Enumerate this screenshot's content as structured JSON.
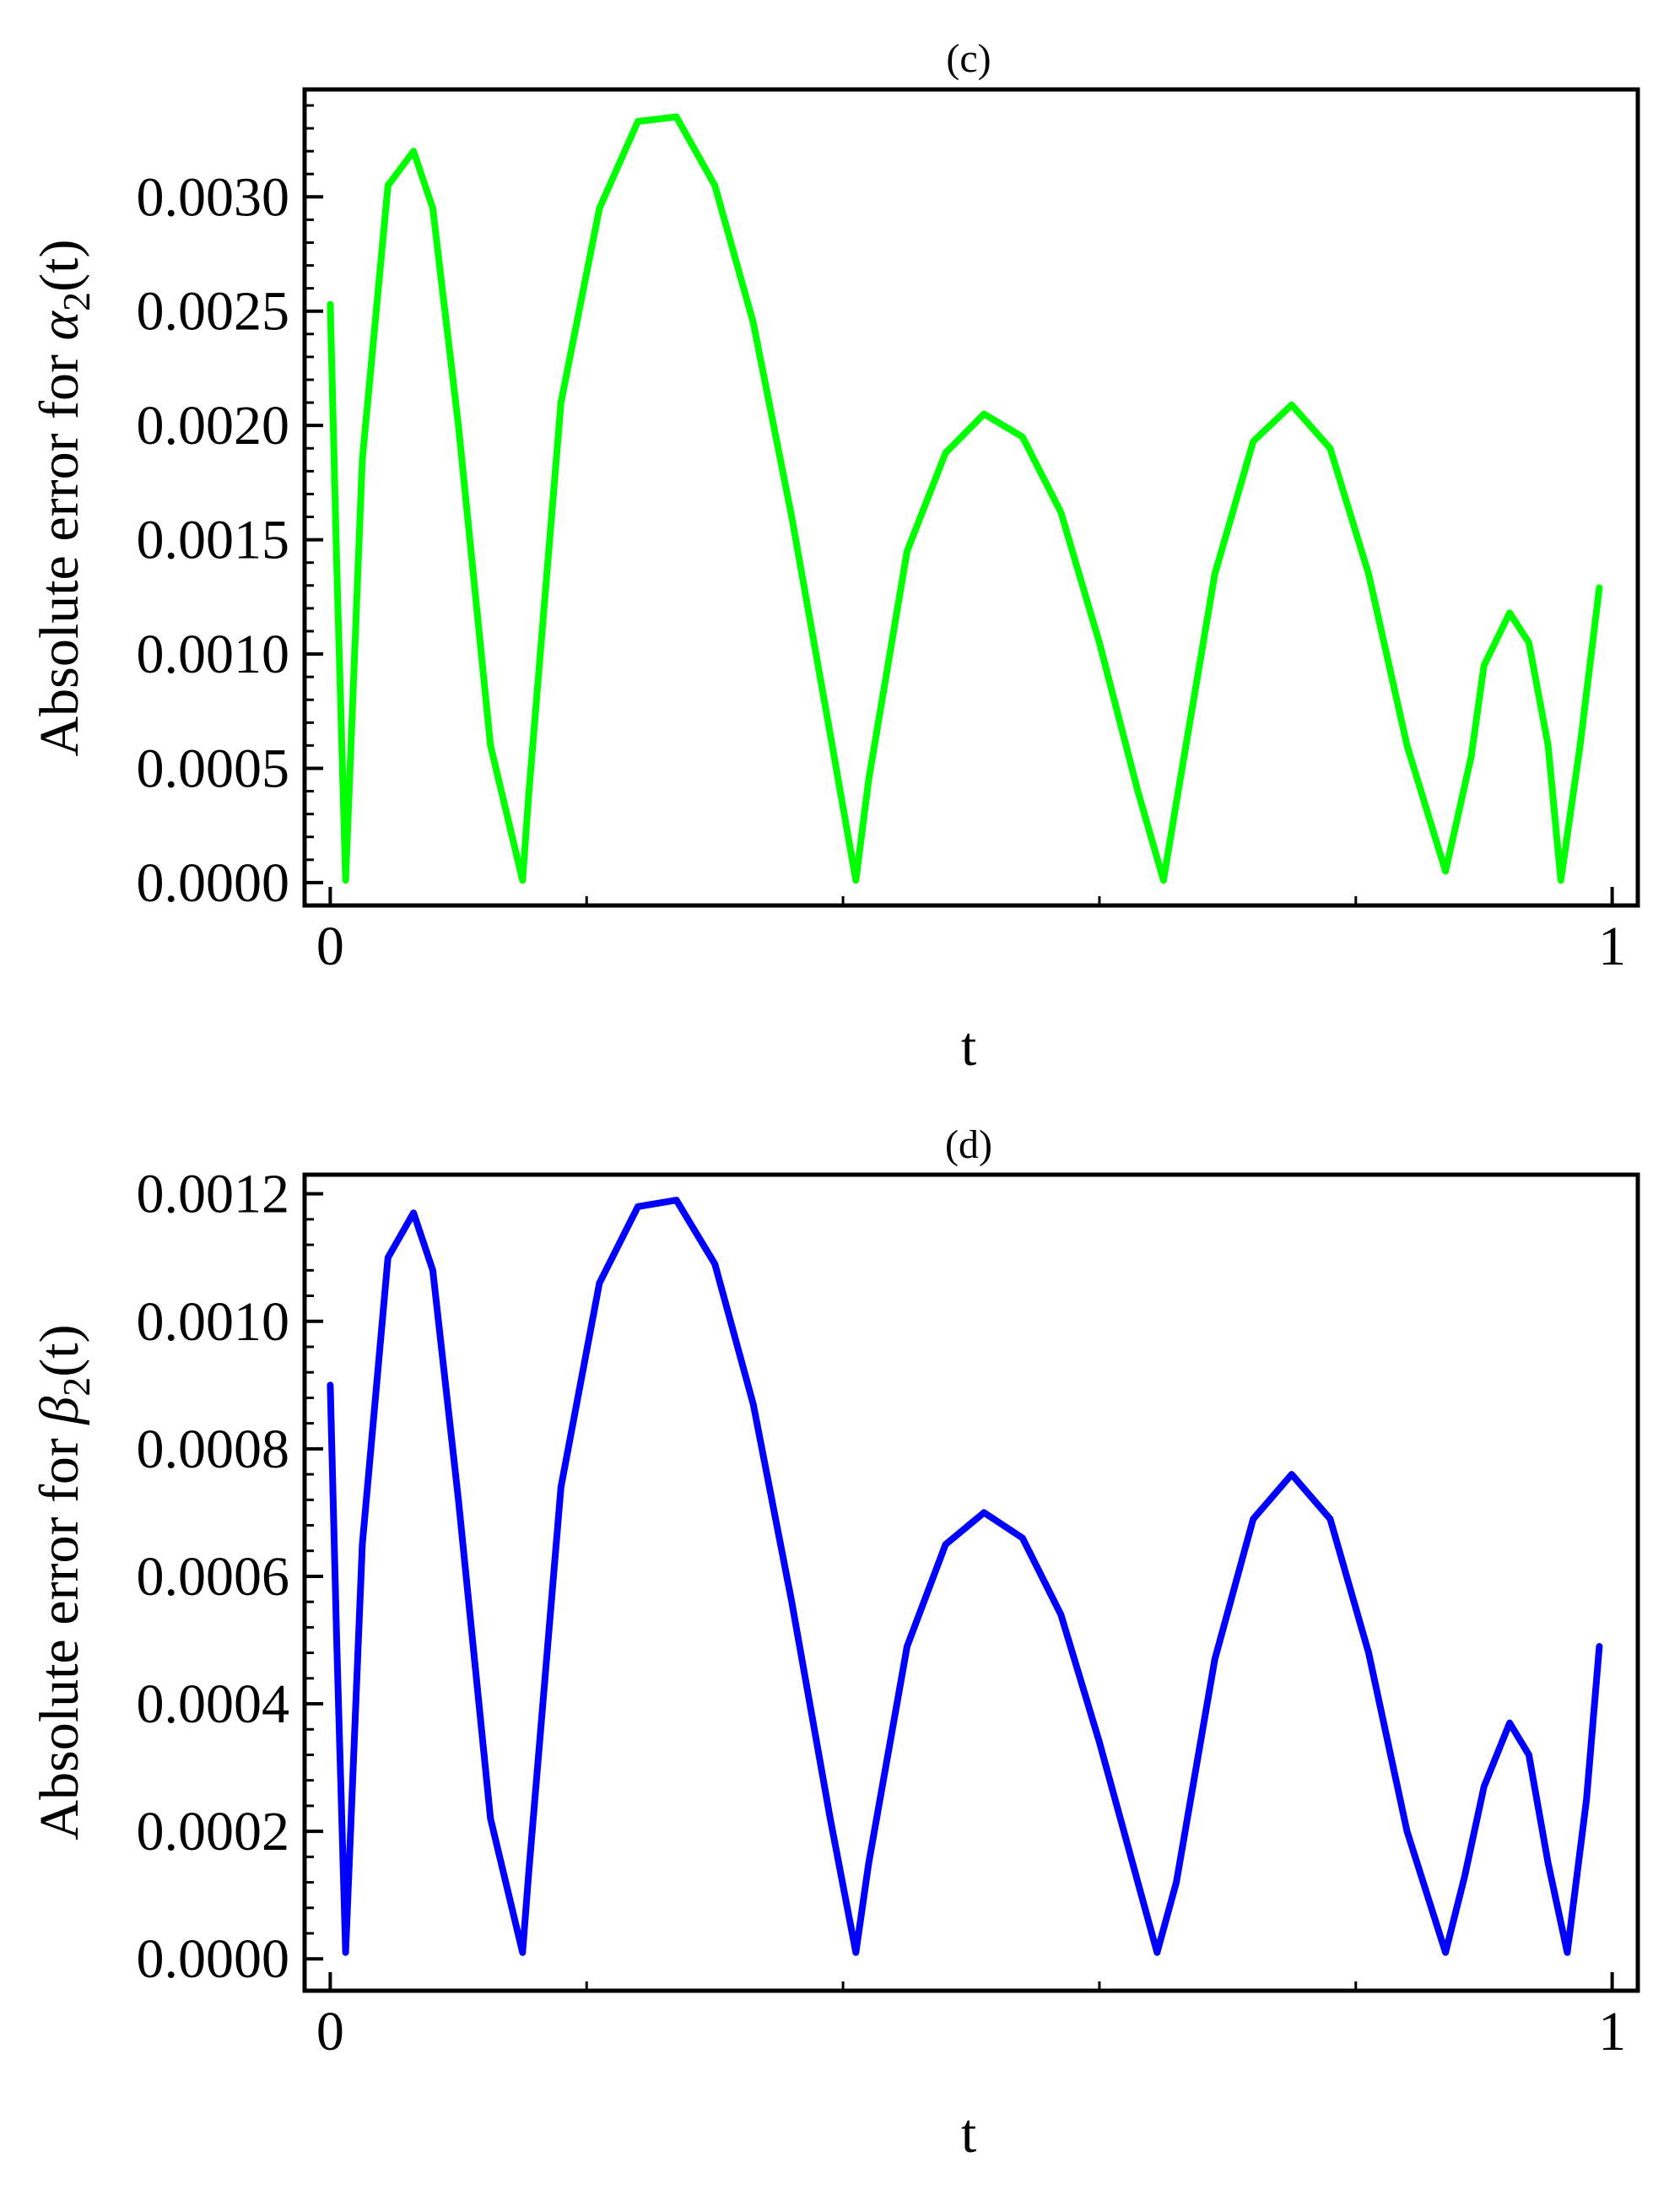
{
  "chart_data": [
    {
      "type": "line",
      "title": "(c)",
      "xlabel": "t",
      "ylabel_prefix": "Absolute error for ",
      "ylabel_symbol": "α",
      "ylabel_sub": "2",
      "ylabel_suffix": "(t)",
      "xlim": [
        -0.02,
        1.02
      ],
      "ylim": [
        -0.0001,
        0.00347
      ],
      "x_ticks": [
        0,
        1
      ],
      "x_tick_labels": [
        "0",
        "1"
      ],
      "y_ticks": [
        0,
        0.0005,
        0.001,
        0.0015,
        0.002,
        0.0025,
        0.003
      ],
      "y_tick_labels": [
        "0.0000",
        "0.0005",
        "0.0010",
        "0.0015",
        "0.0020",
        "0.0025",
        "0.0030"
      ],
      "grid": false,
      "series": [
        {
          "color": "#00ff00",
          "x": [
            0.0,
            0.005,
            0.012,
            0.025,
            0.045,
            0.065,
            0.08,
            0.1,
            0.125,
            0.15,
            0.155,
            0.18,
            0.21,
            0.24,
            0.27,
            0.3,
            0.33,
            0.36,
            0.39,
            0.41,
            0.42,
            0.45,
            0.48,
            0.51,
            0.54,
            0.57,
            0.6,
            0.63,
            0.65,
            0.66,
            0.69,
            0.72,
            0.75,
            0.78,
            0.81,
            0.84,
            0.87,
            0.89,
            0.9,
            0.92,
            0.935,
            0.95,
            0.96,
            0.975,
            0.99
          ],
          "y": [
            0.00253,
            0.0014,
            1e-05,
            0.00185,
            0.00305,
            0.0032,
            0.00295,
            0.002,
            0.0006,
            1e-05,
            0.0004,
            0.0021,
            0.00295,
            0.00333,
            0.00335,
            0.00305,
            0.00245,
            0.0016,
            0.00065,
            1e-05,
            0.00045,
            0.00145,
            0.00188,
            0.00205,
            0.00195,
            0.00162,
            0.00105,
            0.0004,
            1e-05,
            0.00035,
            0.00135,
            0.00193,
            0.00209,
            0.0019,
            0.00135,
            0.0006,
            5e-05,
            0.00055,
            0.00095,
            0.00118,
            0.00105,
            0.0006,
            1e-05,
            0.0006,
            0.00129
          ]
        }
      ]
    },
    {
      "type": "line",
      "title": "(d)",
      "xlabel": "t",
      "ylabel_prefix": "Absolute error for ",
      "ylabel_symbol": "β",
      "ylabel_sub": "2",
      "ylabel_suffix": "(t)",
      "xlim": [
        -0.02,
        1.02
      ],
      "ylim": [
        -5e-05,
        0.00123
      ],
      "x_ticks": [
        0,
        1
      ],
      "x_tick_labels": [
        "0",
        "1"
      ],
      "y_ticks": [
        0,
        0.0002,
        0.0004,
        0.0006,
        0.0008,
        0.001,
        0.0012
      ],
      "y_tick_labels": [
        "0.0000",
        "0.0002",
        "0.0004",
        "0.0006",
        "0.0008",
        "0.0010",
        "0.0012"
      ],
      "grid": false,
      "series": [
        {
          "color": "#0000ff",
          "x": [
            0.0,
            0.005,
            0.012,
            0.025,
            0.045,
            0.065,
            0.08,
            0.1,
            0.125,
            0.15,
            0.155,
            0.18,
            0.21,
            0.24,
            0.27,
            0.3,
            0.33,
            0.36,
            0.39,
            0.41,
            0.42,
            0.45,
            0.48,
            0.51,
            0.54,
            0.57,
            0.6,
            0.63,
            0.645,
            0.66,
            0.69,
            0.72,
            0.75,
            0.78,
            0.81,
            0.84,
            0.87,
            0.885,
            0.9,
            0.92,
            0.935,
            0.95,
            0.965,
            0.98,
            0.99
          ],
          "y": [
            0.0009,
            0.0005,
            1e-05,
            0.00065,
            0.0011,
            0.00117,
            0.00108,
            0.00072,
            0.00022,
            1e-05,
            0.00014,
            0.00074,
            0.00106,
            0.00118,
            0.00119,
            0.00109,
            0.00087,
            0.00056,
            0.00022,
            1e-05,
            0.00015,
            0.00049,
            0.00065,
            0.0007,
            0.00066,
            0.00054,
            0.00034,
            0.00012,
            1e-05,
            0.00012,
            0.00047,
            0.00069,
            0.00076,
            0.00069,
            0.00048,
            0.0002,
            1e-05,
            0.00013,
            0.00027,
            0.00037,
            0.00032,
            0.00015,
            1e-05,
            0.00025,
            0.00049
          ]
        }
      ]
    }
  ]
}
